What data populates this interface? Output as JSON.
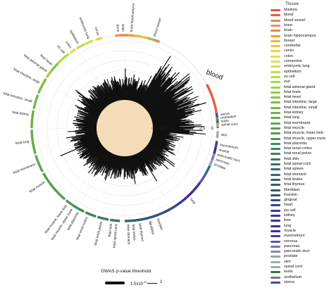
{
  "chart_data": {
    "type": "radial-bar",
    "axis_ticks": [
      "0",
      "0.5",
      "1",
      "1.5",
      "2",
      "2.5",
      "3"
    ],
    "axis_tick_values": [
      0,
      0.5,
      1,
      1.5,
      2,
      2.5,
      3
    ],
    "radial_max": 3,
    "highlight_label": "blood",
    "legend_title": "Tissue",
    "tissues": [
      {
        "name": "blastula",
        "color": "#e5533d"
      },
      {
        "name": "blood",
        "color": "#e0604a"
      },
      {
        "name": "blood vessel",
        "color": "#d98b5f"
      },
      {
        "name": "bone",
        "color": "#e39472"
      },
      {
        "name": "brain",
        "color": "#e58a3a"
      },
      {
        "name": "brain hippocampus",
        "color": "#eaa03b"
      },
      {
        "name": "breast",
        "color": "#efb43c"
      },
      {
        "name": "cerebellar",
        "color": "#f0c23c"
      },
      {
        "name": "cervix",
        "color": "#f2d13e"
      },
      {
        "name": "colon",
        "color": "#e8d94a"
      },
      {
        "name": "connective",
        "color": "#dde04c"
      },
      {
        "name": "embryonic lung",
        "color": "#cfe24f"
      },
      {
        "name": "epithelium",
        "color": "#c2e04d"
      },
      {
        "name": "es cell",
        "color": "#b5dc4c"
      },
      {
        "name": "eye",
        "color": "#a8d74a"
      },
      {
        "name": "fetal adrenal gland",
        "color": "#9cd14a"
      },
      {
        "name": "fetal brain",
        "color": "#8fcb49"
      },
      {
        "name": "fetal heart",
        "color": "#84c449"
      },
      {
        "name": "fetal intestine, large",
        "color": "#7cbd49"
      },
      {
        "name": "fetal intestine, small",
        "color": "#74b74b"
      },
      {
        "name": "fetal kidney",
        "color": "#6db14c"
      },
      {
        "name": "fetal lung",
        "color": "#66ab4e"
      },
      {
        "name": "fetal membrane",
        "color": "#5fa54f"
      },
      {
        "name": "fetal muscle",
        "color": "#589e50"
      },
      {
        "name": "fetal muscle, lower limb",
        "color": "#519853"
      },
      {
        "name": "fetal muscle, upper trunk",
        "color": "#4b9156"
      },
      {
        "name": "fetal placenta",
        "color": "#468b59"
      },
      {
        "name": "fetal renal cortex",
        "color": "#42855c"
      },
      {
        "name": "fetal renal pelvis",
        "color": "#3e7f60"
      },
      {
        "name": "fetal skin",
        "color": "#3b7963"
      },
      {
        "name": "fetal spinal cord",
        "color": "#387367"
      },
      {
        "name": "fetal spleen",
        "color": "#356d6b"
      },
      {
        "name": "fetal stomach",
        "color": "#33676f"
      },
      {
        "name": "fetal testes",
        "color": "#316173"
      },
      {
        "name": "fetal thymus",
        "color": "#305b77"
      },
      {
        "name": "fibroblast",
        "color": "#30557b"
      },
      {
        "name": "foreskin",
        "color": "#314f80"
      },
      {
        "name": "gingival",
        "color": "#334984"
      },
      {
        "name": "heart",
        "color": "#354388"
      },
      {
        "name": "ips cell",
        "color": "#383d8c"
      },
      {
        "name": "kidney",
        "color": "#3b378f"
      },
      {
        "name": "liver",
        "color": "#3e3192"
      },
      {
        "name": "lung",
        "color": "#412c95"
      },
      {
        "name": "muscle",
        "color": "#442897"
      },
      {
        "name": "myometrium",
        "color": "#4a3a9a"
      },
      {
        "name": "nervous",
        "color": "#5a5aa2"
      },
      {
        "name": "pancreas",
        "color": "#6e73aa"
      },
      {
        "name": "pancreatic duct",
        "color": "#8189b3"
      },
      {
        "name": "prostate",
        "color": "#969fbc"
      },
      {
        "name": "skin",
        "color": "#a3a9b8"
      },
      {
        "name": "spinal cord",
        "color": "#a7aaa8"
      },
      {
        "name": "testis",
        "color": "#2e7a3c"
      },
      {
        "name": "urothelium",
        "color": "#7a7a7a"
      },
      {
        "name": "uterus",
        "color": "#3d4aa8"
      }
    ],
    "ring_labels": [
      {
        "text": "blood vessel",
        "angle": 18
      },
      {
        "text": "brain hippocampus",
        "angle": 4
      },
      {
        "text": "brain",
        "angle": -1
      },
      {
        "text": "bone",
        "angle": -4
      },
      {
        "text": "cervix",
        "angle": -16
      },
      {
        "text": "embryonic lung",
        "angle": -22
      },
      {
        "text": "epithelium",
        "angle": -29
      },
      {
        "text": "colon",
        "angle": -34
      },
      {
        "text": "es cell",
        "angle": -39
      },
      {
        "text": "fetal heart",
        "angle": -49
      },
      {
        "text": "fetal adrenal gland",
        "angle": -54
      },
      {
        "text": "fetal intestine, large",
        "angle": -62
      },
      {
        "text": "fetal intestine, small",
        "angle": -74
      },
      {
        "text": "fetal kidney",
        "angle": -82
      },
      {
        "text": "fetal lung",
        "angle": -98
      },
      {
        "text": "fetal membrane",
        "angle": -112
      },
      {
        "text": "fetal muscle",
        "angle": -124
      },
      {
        "text": "fetal muscle, lower limb",
        "angle": -143
      },
      {
        "text": "fetal muscle, upper trunk",
        "angle": -147
      },
      {
        "text": "fetal placenta",
        "angle": -151
      },
      {
        "text": "fetal renal cortex",
        "angle": -157
      },
      {
        "text": "fetal renal pelvis",
        "angle": -166
      },
      {
        "text": "fetal skin",
        "angle": -172
      },
      {
        "text": "fetal spinal cord",
        "angle": -175
      },
      {
        "text": "fetal stomach",
        "angle": 178
      },
      {
        "text": "fetal testes",
        "angle": 175
      },
      {
        "text": "fetal thymus",
        "angle": 171
      },
      {
        "text": "fibroblast",
        "angle": 165
      },
      {
        "text": "foreskin",
        "angle": 160
      },
      {
        "text": "lung",
        "angle": 137
      },
      {
        "text": "prostate",
        "angle": 112
      },
      {
        "text": "pancreas",
        "angle": 109
      },
      {
        "text": "pancreatic duct",
        "angle": 106
      },
      {
        "text": "muscle",
        "angle": 103
      },
      {
        "text": "myometrium",
        "angle": 100
      },
      {
        "text": "skin",
        "angle": 94
      },
      {
        "text": "spinal cord",
        "angle": 88
      },
      {
        "text": "testis",
        "angle": 86
      },
      {
        "text": "urothelium",
        "angle": 84
      },
      {
        "text": "uterus",
        "angle": 82
      }
    ],
    "segments": [
      {
        "tissue": "blastula",
        "start": 62,
        "end": 66
      },
      {
        "tissue": "blood",
        "start": 66,
        "end": 90
      },
      {
        "tissue": "blood vessel",
        "start": 18,
        "end": 22
      },
      {
        "tissue": "bone",
        "start": -6,
        "end": -3
      },
      {
        "tissue": "brain",
        "start": -3,
        "end": 2
      },
      {
        "tissue": "brain hippocampus",
        "start": 2,
        "end": 6
      },
      {
        "tissue": "breast",
        "start": 6,
        "end": 10
      },
      {
        "tissue": "cervix",
        "start": -18,
        "end": -14
      },
      {
        "tissue": "colon",
        "start": -36,
        "end": -32
      },
      {
        "tissue": "embryonic lung",
        "start": -24,
        "end": -20
      },
      {
        "tissue": "epithelium",
        "start": -31,
        "end": -26
      },
      {
        "tissue": "es cell",
        "start": -44,
        "end": -37
      },
      {
        "tissue": "fetal adrenal gland",
        "start": -57,
        "end": -52
      },
      {
        "tissue": "fetal heart",
        "start": -52,
        "end": -46
      },
      {
        "tissue": "fetal intestine, large",
        "start": -68,
        "end": -58
      },
      {
        "tissue": "fetal intestine, small",
        "start": -78,
        "end": -69
      },
      {
        "tissue": "fetal kidney",
        "start": -90,
        "end": -79
      },
      {
        "tissue": "fetal lung",
        "start": -106,
        "end": -91
      },
      {
        "tissue": "fetal membrane",
        "start": -118,
        "end": -107
      },
      {
        "tissue": "fetal muscle",
        "start": -140,
        "end": -119
      },
      {
        "tissue": "fetal muscle, lower limb",
        "start": -146,
        "end": -141
      },
      {
        "tissue": "fetal muscle, upper trunk",
        "start": -150,
        "end": -146
      },
      {
        "tissue": "fetal placenta",
        "start": -154,
        "end": -150
      },
      {
        "tissue": "fetal renal cortex",
        "start": -162,
        "end": -155
      },
      {
        "tissue": "fetal renal pelvis",
        "start": -170,
        "end": -163
      },
      {
        "tissue": "fetal skin",
        "start": -174,
        "end": -171
      },
      {
        "tissue": "fetal spinal cord",
        "start": -177,
        "end": -174
      },
      {
        "tissue": "fetal stomach",
        "start": 176,
        "end": 180
      },
      {
        "tissue": "fetal testes",
        "start": 173,
        "end": 176
      },
      {
        "tissue": "fetal thymus",
        "start": 168,
        "end": 173
      },
      {
        "tissue": "fibroblast",
        "start": 162,
        "end": 168
      },
      {
        "tissue": "foreskin",
        "start": 156,
        "end": 162
      },
      {
        "tissue": "gingival",
        "start": 150,
        "end": 156
      },
      {
        "tissue": "heart",
        "start": 146,
        "end": 150
      },
      {
        "tissue": "ips cell",
        "start": 142,
        "end": 146
      },
      {
        "tissue": "kidney",
        "start": 138,
        "end": 142
      },
      {
        "tissue": "lung",
        "start": 132,
        "end": 138
      },
      {
        "tissue": "muscle",
        "start": 102,
        "end": 106
      },
      {
        "tissue": "myometrium",
        "start": 98,
        "end": 102
      },
      {
        "tissue": "nervous",
        "start": 120,
        "end": 126
      },
      {
        "tissue": "pancreas",
        "start": 108,
        "end": 110
      },
      {
        "tissue": "pancreatic duct",
        "start": 106,
        "end": 108
      },
      {
        "tissue": "prostate",
        "start": 110,
        "end": 114
      },
      {
        "tissue": "skin",
        "start": 92,
        "end": 96
      },
      {
        "tissue": "spinal cord",
        "start": 87,
        "end": 89
      },
      {
        "tissue": "testis",
        "start": 85,
        "end": 87
      },
      {
        "tissue": "urothelium",
        "start": 83,
        "end": 85
      },
      {
        "tissue": "uterus",
        "start": 81,
        "end": 83
      },
      {
        "tissue": "eye",
        "start": -46,
        "end": -44
      },
      {
        "tissue": "connective",
        "start": -26,
        "end": -24
      },
      {
        "tissue": "cerebellar",
        "start": 10,
        "end": 14
      },
      {
        "tissue": "liver",
        "start": 126,
        "end": 132
      },
      {
        "tissue": "fetal brain",
        "start": 14,
        "end": 18
      },
      {
        "tissue": "fetal spleen",
        "start": 114,
        "end": 120
      }
    ],
    "bottom_legend": {
      "title": "GWAS p-value threshold",
      "min_label": "1.5x10",
      "min_exponent": "-11",
      "max_label": "1"
    }
  }
}
